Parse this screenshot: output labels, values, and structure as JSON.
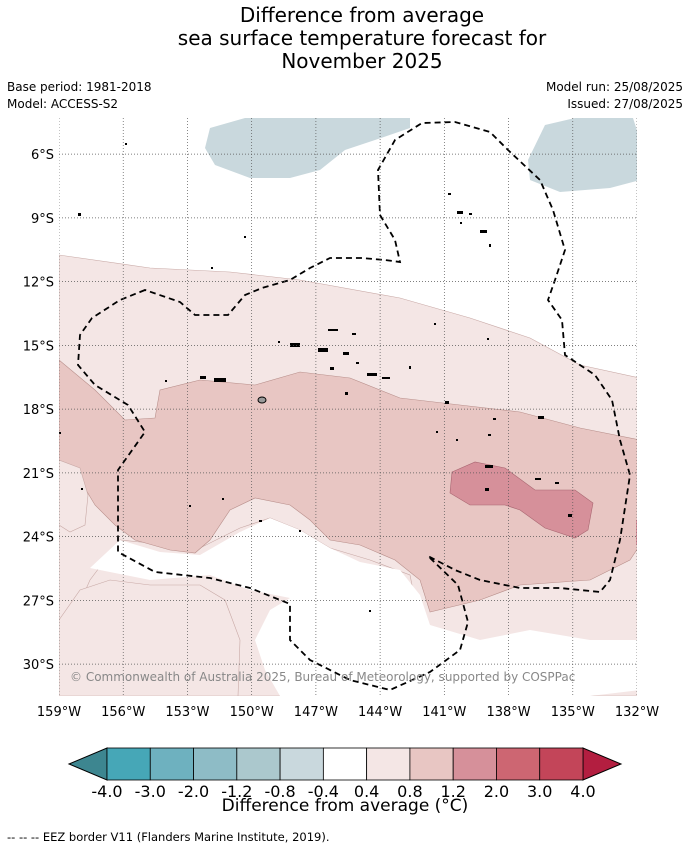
{
  "title": {
    "line1": "Difference from average",
    "line2": "sea surface temperature forecast for",
    "line3": "November 2025"
  },
  "meta": {
    "base_period": "Base period: 1981-2018",
    "model": "Model: ACCESS-S2",
    "model_run": "Model run: 25/08/2025",
    "issued": "Issued: 27/08/2025"
  },
  "map": {
    "lon_range": [
      -159,
      -132
    ],
    "lat_range": [
      -31.5,
      -4.3
    ],
    "lon_ticks": [
      {
        "value": -159,
        "label": "159°W"
      },
      {
        "value": -156,
        "label": "156°W"
      },
      {
        "value": -153,
        "label": "153°W"
      },
      {
        "value": -150,
        "label": "150°W"
      },
      {
        "value": -147,
        "label": "147°W"
      },
      {
        "value": -144,
        "label": "144°W"
      },
      {
        "value": -141,
        "label": "141°W"
      },
      {
        "value": -138,
        "label": "138°W"
      },
      {
        "value": -135,
        "label": "135°W"
      },
      {
        "value": -132,
        "label": "132°W"
      }
    ],
    "lat_ticks": [
      {
        "value": -6,
        "label": "6°S"
      },
      {
        "value": -9,
        "label": "9°S"
      },
      {
        "value": -12,
        "label": "12°S"
      },
      {
        "value": -15,
        "label": "15°S"
      },
      {
        "value": -18,
        "label": "18°S"
      },
      {
        "value": -21,
        "label": "21°S"
      },
      {
        "value": -24,
        "label": "24°S"
      },
      {
        "value": -27,
        "label": "27°S"
      },
      {
        "value": -30,
        "label": "30°S"
      }
    ],
    "copyright": "© Commonwealth of Australia 2025, Bureau of Meteorology, supported by COSPPac",
    "colors": {
      "cool_band": "#c9d8dd",
      "warm_0_4": "#f4e6e5",
      "warm_0_8": "#e8c6c3",
      "warm_1_2": "#d6909a",
      "eez": "#000000",
      "grid": "#555555"
    }
  },
  "colorbar": {
    "label": "Difference from average (°C)",
    "ticks": [
      "-4.0",
      "-3.0",
      "-2.0",
      "-1.2",
      "-0.8",
      "-0.4",
      "0.4",
      "0.8",
      "1.2",
      "2.0",
      "3.0",
      "4.0"
    ],
    "under_color": "#3d8690",
    "over_color": "#b31e40",
    "colors": [
      "#46a7b7",
      "#6eb1bf",
      "#8ebcc6",
      "#abc8cd",
      "#c9d8dd",
      "#ffffff",
      "#f4e6e5",
      "#e8c6c3",
      "#d6909a",
      "#cd6672",
      "#c34559"
    ]
  },
  "footer": "--  --  -- EEZ border V11 (Flanders Marine Institute, 2019)."
}
